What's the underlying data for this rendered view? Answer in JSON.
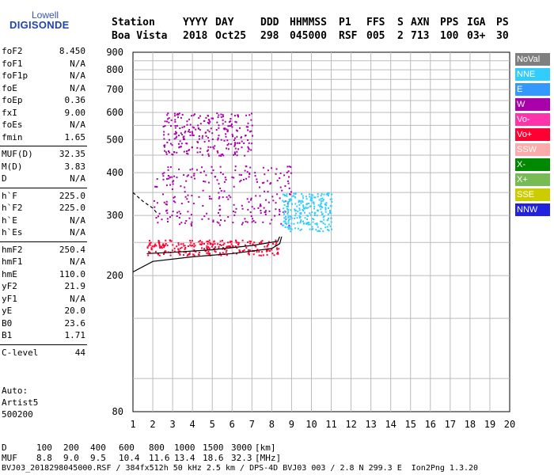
{
  "logo": {
    "line1": "Lowell",
    "line2": "DIGISONDE"
  },
  "header": {
    "row1": [
      "Station",
      "YYYY",
      "DAY",
      "DDD",
      "HHMMSS",
      "P1",
      "FFS",
      "S",
      "AXN",
      "PPS",
      "IGA",
      "PS"
    ],
    "row2": [
      "Boa Vista",
      "2018",
      "Oct25",
      "298",
      "045000",
      "RSF",
      "005",
      "2",
      "713",
      "100",
      "03+",
      "30"
    ]
  },
  "params": [
    {
      "name": "foF2",
      "value": "8.450"
    },
    {
      "name": "foF1",
      "value": "N/A"
    },
    {
      "name": "foF1p",
      "value": "N/A"
    },
    {
      "name": "foE",
      "value": "N/A"
    },
    {
      "name": "foEp",
      "value": "0.36"
    },
    {
      "name": "fxI",
      "value": "9.00"
    },
    {
      "name": "foEs",
      "value": "N/A"
    },
    {
      "name": "fmin",
      "value": "1.65"
    },
    {
      "name": "MUF(D)",
      "value": "32.35"
    },
    {
      "name": "M(D)",
      "value": "3.83"
    },
    {
      "name": "D",
      "value": "N/A"
    },
    {
      "name": "h`F",
      "value": "225.0"
    },
    {
      "name": "h`F2",
      "value": "225.0"
    },
    {
      "name": "h`E",
      "value": "N/A"
    },
    {
      "name": "h`Es",
      "value": "N/A"
    },
    {
      "name": "hmF2",
      "value": "250.4"
    },
    {
      "name": "hmF1",
      "value": "N/A"
    },
    {
      "name": "hmE",
      "value": "110.0"
    },
    {
      "name": "yF2",
      "value": "21.9"
    },
    {
      "name": "yF1",
      "value": "N/A"
    },
    {
      "name": "yE",
      "value": "20.0"
    },
    {
      "name": "B0",
      "value": "23.6"
    },
    {
      "name": "B1",
      "value": "1.71"
    },
    {
      "name": "C-level",
      "value": "44"
    }
  ],
  "auto": {
    "line1": "Auto:",
    "line2": "Artist5",
    "line3": "500200"
  },
  "legend": [
    {
      "label": "NoVal",
      "color": "#7f7f7f"
    },
    {
      "label": "NNE",
      "color": "#33ccff"
    },
    {
      "label": "E",
      "color": "#3399ff"
    },
    {
      "label": "W",
      "color": "#aa00aa"
    },
    {
      "label": "Vo-",
      "color": "#ff33aa"
    },
    {
      "label": "Vo+",
      "color": "#ff0033"
    },
    {
      "label": "SSW",
      "color": "#ffaaaa"
    },
    {
      "label": "X-",
      "color": "#008800"
    },
    {
      "label": "X+",
      "color": "#77bb55"
    },
    {
      "label": "SSE",
      "color": "#cccc00"
    },
    {
      "label": "NNW",
      "color": "#2222dd"
    }
  ],
  "footer": {
    "d_label": "D",
    "d_values": [
      "100",
      "200",
      "400",
      "600",
      "800",
      "1000",
      "1500",
      "3000",
      "[km]"
    ],
    "muf_label": "MUF",
    "muf_values": [
      "8.8",
      "9.0",
      "9.5",
      "10.4",
      "11.6",
      "13.4",
      "18.6",
      "32.3",
      "[MHz]"
    ],
    "file_line": "BVJ03_2018298045000.RSF / 384fx512h 50 kHz 2.5 km / DPS-4D BVJ03 003 / 2.8 N 299.3 E  Ion2Png 1.3.20"
  },
  "chart_data": {
    "type": "scatter",
    "xlabel": "",
    "ylabel": "",
    "xlim": [
      1,
      20
    ],
    "ylim": [
      80,
      900
    ],
    "x_ticks": [
      1,
      2,
      3,
      4,
      5,
      6,
      7,
      8,
      9,
      10,
      11,
      12,
      13,
      14,
      15,
      16,
      17,
      18,
      19,
      20
    ],
    "y_ticks": [
      80,
      200,
      300,
      400,
      500,
      600,
      700,
      800,
      900
    ],
    "y_scale": "log",
    "grid": true,
    "echo_clusters": [
      {
        "name": "F2 trace",
        "x_range": [
          1.7,
          8.5
        ],
        "y_range": [
          230,
          255
        ],
        "color": "#ff0033"
      },
      {
        "name": "main spread",
        "x_range": [
          2.0,
          9.0
        ],
        "y_range": [
          280,
          420
        ],
        "color": "#aa00aa"
      },
      {
        "name": "extension",
        "x_range": [
          8.5,
          11.0
        ],
        "y_range": [
          270,
          350
        ],
        "color": "#33ccff"
      },
      {
        "name": "second hop",
        "x_range": [
          2.5,
          7.0
        ],
        "y_range": [
          450,
          600
        ],
        "color": "#aa00aa"
      }
    ],
    "profile_lines": [
      {
        "name": "upper",
        "x": [
          1.0,
          1.5,
          2.0,
          2.2
        ],
        "y": [
          350,
          330,
          315,
          305
        ]
      },
      {
        "name": "lower",
        "x": [
          1.0,
          2.0,
          4.0,
          6.0,
          8.0,
          8.4,
          8.5
        ],
        "y": [
          205,
          220,
          227,
          232,
          240,
          248,
          260
        ]
      },
      {
        "name": "trace",
        "x": [
          1.7,
          3.0,
          5.0,
          7.0,
          8.3,
          8.4
        ],
        "y": [
          232,
          234,
          238,
          245,
          252,
          260
        ]
      }
    ]
  }
}
